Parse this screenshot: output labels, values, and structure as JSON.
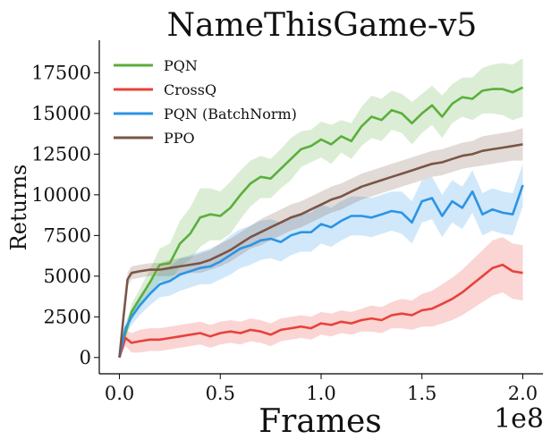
{
  "chart_data": {
    "type": "line",
    "title": "NameThisGame-v5",
    "xlabel": "Frames",
    "ylabel": "Returns",
    "x_multiplier_label": "1e8",
    "xlim": [
      -0.1,
      2.1
    ],
    "ylim": [
      -1000,
      19500
    ],
    "x_ticks": [
      0.0,
      0.5,
      1.0,
      1.5,
      2.0
    ],
    "x_tick_labels": [
      "0.0",
      "0.5",
      "1.0",
      "1.5",
      "2.0"
    ],
    "y_ticks": [
      0,
      2500,
      5000,
      7500,
      10000,
      12500,
      15000,
      17500
    ],
    "y_tick_labels": [
      "0",
      "2500",
      "5000",
      "7500",
      "10000",
      "12500",
      "15000",
      "17500"
    ],
    "grid": false,
    "legend_position": "top-left",
    "series": [
      {
        "name": "PQN",
        "color": "#5aaf3c",
        "x": [
          0.0,
          0.03,
          0.06,
          0.1,
          0.15,
          0.2,
          0.25,
          0.3,
          0.35,
          0.4,
          0.45,
          0.5,
          0.55,
          0.6,
          0.65,
          0.7,
          0.75,
          0.8,
          0.85,
          0.9,
          0.95,
          1.0,
          1.05,
          1.1,
          1.15,
          1.2,
          1.25,
          1.3,
          1.35,
          1.4,
          1.45,
          1.5,
          1.55,
          1.6,
          1.65,
          1.7,
          1.75,
          1.8,
          1.85,
          1.9,
          1.95,
          2.0
        ],
        "values": [
          0,
          1500,
          2800,
          3600,
          4600,
          5700,
          5800,
          7000,
          7600,
          8600,
          8800,
          8700,
          9200,
          10000,
          10700,
          11100,
          11000,
          11600,
          12200,
          12800,
          13000,
          13400,
          13100,
          13600,
          13300,
          14200,
          14800,
          14600,
          15200,
          15000,
          14400,
          15000,
          15500,
          14800,
          15600,
          16000,
          15900,
          16400,
          16500,
          16500,
          16300,
          16600
        ],
        "band_halfwidth": [
          0,
          300,
          500,
          600,
          800,
          1000,
          1200,
          1400,
          1600,
          1800,
          1600,
          1500,
          1600,
          1500,
          1400,
          1300,
          1200,
          1200,
          1300,
          1100,
          1000,
          1100,
          1200,
          1000,
          1100,
          1200,
          1300,
          1300,
          1200,
          1200,
          1300,
          1200,
          1200,
          1300,
          1200,
          1200,
          1300,
          1400,
          1500,
          1600,
          1700,
          1800
        ]
      },
      {
        "name": "CrossQ",
        "color": "#e8423a",
        "x": [
          0.0,
          0.03,
          0.06,
          0.1,
          0.15,
          0.2,
          0.25,
          0.3,
          0.35,
          0.4,
          0.45,
          0.5,
          0.55,
          0.6,
          0.65,
          0.7,
          0.75,
          0.8,
          0.85,
          0.9,
          0.95,
          1.0,
          1.05,
          1.1,
          1.15,
          1.2,
          1.25,
          1.3,
          1.35,
          1.4,
          1.45,
          1.5,
          1.55,
          1.6,
          1.65,
          1.7,
          1.75,
          1.8,
          1.85,
          1.9,
          1.95,
          2.0
        ],
        "values": [
          0,
          1200,
          900,
          1000,
          1100,
          1100,
          1200,
          1300,
          1400,
          1500,
          1300,
          1500,
          1600,
          1500,
          1700,
          1600,
          1400,
          1700,
          1800,
          1900,
          1800,
          2100,
          2000,
          2200,
          2100,
          2300,
          2400,
          2300,
          2600,
          2700,
          2600,
          2900,
          3000,
          3300,
          3600,
          4000,
          4500,
          5000,
          5500,
          5700,
          5300,
          5200
        ],
        "band_halfwidth": [
          0,
          500,
          600,
          700,
          700,
          700,
          700,
          700,
          700,
          700,
          700,
          700,
          700,
          700,
          700,
          700,
          700,
          700,
          700,
          700,
          700,
          700,
          700,
          700,
          700,
          700,
          800,
          800,
          800,
          900,
          900,
          1000,
          1100,
          1200,
          1300,
          1400,
          1500,
          1600,
          1700,
          1700,
          1700,
          1700
        ]
      },
      {
        "name": "PQN (BatchNorm)",
        "color": "#2b94e6",
        "x": [
          0.0,
          0.03,
          0.06,
          0.1,
          0.15,
          0.2,
          0.25,
          0.3,
          0.35,
          0.4,
          0.45,
          0.5,
          0.55,
          0.6,
          0.65,
          0.7,
          0.75,
          0.8,
          0.85,
          0.9,
          0.95,
          1.0,
          1.05,
          1.1,
          1.15,
          1.2,
          1.25,
          1.3,
          1.35,
          1.4,
          1.45,
          1.5,
          1.55,
          1.6,
          1.65,
          1.7,
          1.75,
          1.8,
          1.85,
          1.9,
          1.95,
          2.0
        ],
        "values": [
          0,
          1800,
          2500,
          3200,
          3900,
          4500,
          4700,
          5100,
          5300,
          5500,
          5600,
          5900,
          6300,
          6700,
          6900,
          7200,
          7300,
          7100,
          7500,
          7700,
          7700,
          8200,
          8000,
          8400,
          8700,
          8700,
          8600,
          8800,
          9000,
          8900,
          8300,
          9600,
          9800,
          8700,
          9600,
          9200,
          10200,
          8800,
          9100,
          8900,
          8800,
          10600
        ],
        "band_halfwidth": [
          0,
          400,
          500,
          600,
          700,
          800,
          900,
          1000,
          1000,
          1000,
          1100,
          1100,
          1200,
          1200,
          1200,
          1200,
          1200,
          1200,
          1200,
          1200,
          1200,
          1200,
          1200,
          1200,
          1200,
          1200,
          1200,
          1200,
          1200,
          1300,
          1300,
          1300,
          1300,
          1300,
          1300,
          1300,
          1300,
          1300,
          1300,
          1300,
          1300,
          1300
        ]
      },
      {
        "name": "PPO",
        "color": "#7a5546",
        "x": [
          0.0,
          0.02,
          0.04,
          0.06,
          0.1,
          0.15,
          0.2,
          0.25,
          0.3,
          0.35,
          0.4,
          0.45,
          0.5,
          0.55,
          0.6,
          0.65,
          0.7,
          0.75,
          0.8,
          0.85,
          0.9,
          0.95,
          1.0,
          1.05,
          1.1,
          1.15,
          1.2,
          1.25,
          1.3,
          1.35,
          1.4,
          1.45,
          1.5,
          1.55,
          1.6,
          1.65,
          1.7,
          1.75,
          1.8,
          1.85,
          1.9,
          1.95,
          2.0
        ],
        "values": [
          0,
          2500,
          4800,
          5200,
          5300,
          5400,
          5400,
          5500,
          5600,
          5700,
          5800,
          6000,
          6300,
          6600,
          7000,
          7400,
          7700,
          8000,
          8300,
          8600,
          8800,
          9100,
          9400,
          9700,
          9900,
          10200,
          10500,
          10700,
          10900,
          11100,
          11300,
          11500,
          11700,
          11900,
          12000,
          12200,
          12400,
          12500,
          12700,
          12800,
          12900,
          13000,
          13100
        ],
        "band_halfwidth": [
          0,
          300,
          400,
          400,
          400,
          400,
          400,
          500,
          500,
          500,
          600,
          600,
          700,
          700,
          700,
          700,
          800,
          800,
          800,
          800,
          800,
          800,
          800,
          800,
          800,
          800,
          800,
          800,
          800,
          800,
          800,
          800,
          800,
          800,
          800,
          800,
          800,
          800,
          900,
          900,
          900,
          900,
          1000
        ]
      }
    ]
  }
}
